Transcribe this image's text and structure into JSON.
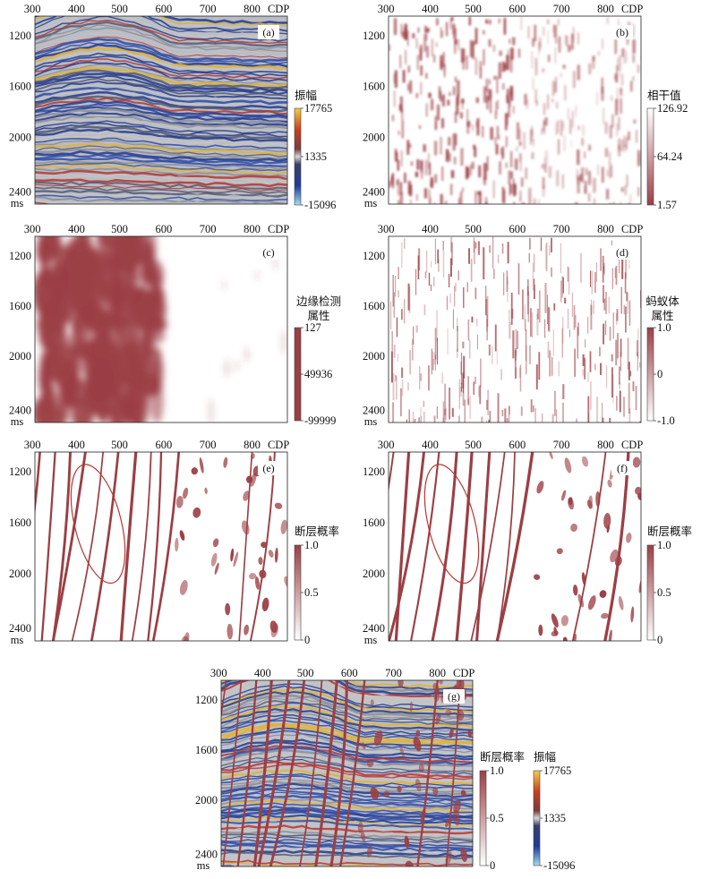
{
  "colors": {
    "fault_red": "#9b3f45",
    "seis_blue": "#22398f",
    "seis_red": "#b8352f",
    "seis_yellow": "#e3b32b",
    "seis_cyan": "#9fd2e6",
    "seis_gray": "#c4c4c4"
  },
  "axis": {
    "x_ticks": [
      "300",
      "400",
      "500",
      "600",
      "700",
      "800"
    ],
    "x_unit": "CDP",
    "y_ticks": [
      "1200",
      "1600",
      "2000",
      "2400"
    ],
    "y_unit": "ms"
  },
  "panels": [
    {
      "label": "(a)",
      "kind": "seismic",
      "colorbar": {
        "title": [
          "振幅"
        ],
        "max": "17765",
        "mid": "1335",
        "min": "-15096",
        "scheme": "seismic"
      }
    },
    {
      "label": "(b)",
      "kind": "coherence",
      "colorbar": {
        "title": [
          "相干值"
        ],
        "max": "126.92",
        "mid": "64.24",
        "min": "1.57",
        "scheme": "white-red"
      }
    },
    {
      "label": "(c)",
      "kind": "edge",
      "colorbar": {
        "title": [
          "边缘检测",
          "属性"
        ],
        "max": "127",
        "mid": "49936",
        "min": "-99999",
        "scheme": "red-solid"
      }
    },
    {
      "label": "(d)",
      "kind": "ant",
      "colorbar": {
        "title": [
          "蚂蚁体",
          "属性"
        ],
        "max": "1.0",
        "mid": "0",
        "min": "-1.0",
        "scheme": "red-white"
      }
    },
    {
      "label": "(e)",
      "kind": "fault",
      "colorbar": {
        "title": [
          "断层概率"
        ],
        "max": "1.0",
        "mid": "0.5",
        "min": "0",
        "scheme": "red-white"
      }
    },
    {
      "label": "(f)",
      "kind": "fault",
      "colorbar": {
        "title": [
          "断层概率"
        ],
        "max": "1.0",
        "mid": "0.5",
        "min": "0",
        "scheme": "red-white"
      }
    },
    {
      "label": "(g)",
      "kind": "overlay",
      "colorbars": [
        {
          "title": [
            "断层概率"
          ],
          "max": "1.0",
          "mid": "0.5",
          "min": "0",
          "scheme": "red-white"
        },
        {
          "title": [
            "振幅"
          ],
          "max": "17765",
          "mid": "1335",
          "min": "-15096",
          "scheme": "seismic"
        }
      ]
    }
  ]
}
